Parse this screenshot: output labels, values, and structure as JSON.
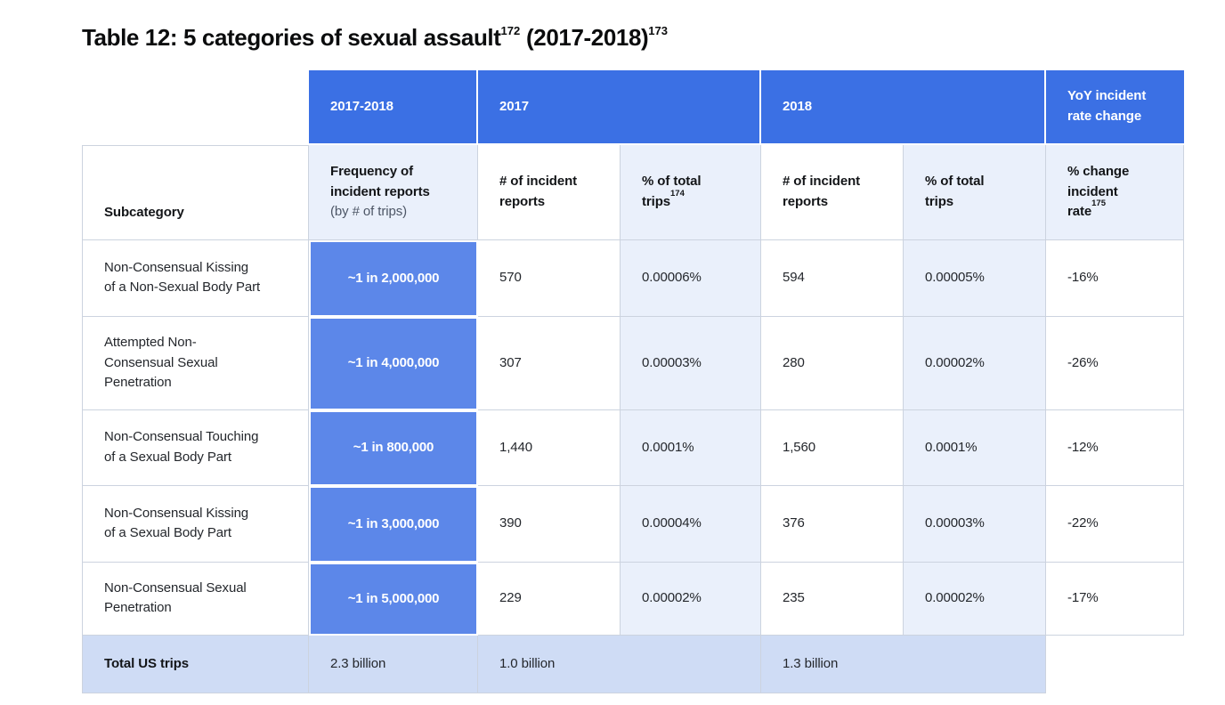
{
  "title": {
    "part1": "Table 12: 5 categories of sexual assault",
    "sup1": "172",
    "part2": " (2017-2018)",
    "sup2": "173"
  },
  "colors": {
    "header_blue": "#3b70e4",
    "frequency_cell_blue": "#5c87e9",
    "light_blue_cell": "#eaf0fb",
    "footer_blue": "#cfdcf5",
    "border_gray": "#ccd3df"
  },
  "table": {
    "top_headers": {
      "period": "2017-2018",
      "year_2017": "2017",
      "year_2018": "2018",
      "yoy": "YoY incident\nrate change"
    },
    "sub_headers": {
      "subcategory": "Subcategory",
      "frequency_main": "Frequency of\nincident reports",
      "frequency_note": "(by # of trips)",
      "reports_2017": "# of incident\nreports",
      "pct_2017": "% of total\ntrips",
      "pct_2017_sup": "174",
      "reports_2018": "# of incident\nreports",
      "pct_2018": "% of total\ntrips",
      "yoy": "% change\nincident\nrate",
      "yoy_sup": "175"
    },
    "rows": [
      {
        "subcategory": "Non-Consensual Kissing\nof a Non-Sexual Body Part",
        "frequency": "~1 in 2,000,000",
        "reports_2017": "570",
        "pct_2017": "0.00006%",
        "reports_2018": "594",
        "pct_2018": "0.00005%",
        "yoy": "-16%"
      },
      {
        "subcategory": "Attempted Non-\nConsensual Sexual\nPenetration",
        "frequency": "~1 in 4,000,000",
        "reports_2017": "307",
        "pct_2017": "0.00003%",
        "reports_2018": "280",
        "pct_2018": "0.00002%",
        "yoy": "-26%"
      },
      {
        "subcategory": "Non-Consensual Touching\nof a Sexual Body Part",
        "frequency": "~1 in 800,000",
        "reports_2017": "1,440",
        "pct_2017": "0.0001%",
        "reports_2018": "1,560",
        "pct_2018": "0.0001%",
        "yoy": "-12%"
      },
      {
        "subcategory": "Non-Consensual Kissing\nof a Sexual Body Part",
        "frequency": "~1 in 3,000,000",
        "reports_2017": "390",
        "pct_2017": "0.00004%",
        "reports_2018": "376",
        "pct_2018": "0.00003%",
        "yoy": "-22%"
      },
      {
        "subcategory": "Non-Consensual Sexual\nPenetration",
        "frequency": "~1 in 5,000,000",
        "reports_2017": "229",
        "pct_2017": "0.00002%",
        "reports_2018": "235",
        "pct_2018": "0.00002%",
        "yoy": "-17%"
      }
    ],
    "footer": {
      "label": "Total US trips",
      "total_trips": "2.3 billion",
      "trips_2017": "1.0 billion",
      "trips_2018": "1.3 billion"
    }
  }
}
